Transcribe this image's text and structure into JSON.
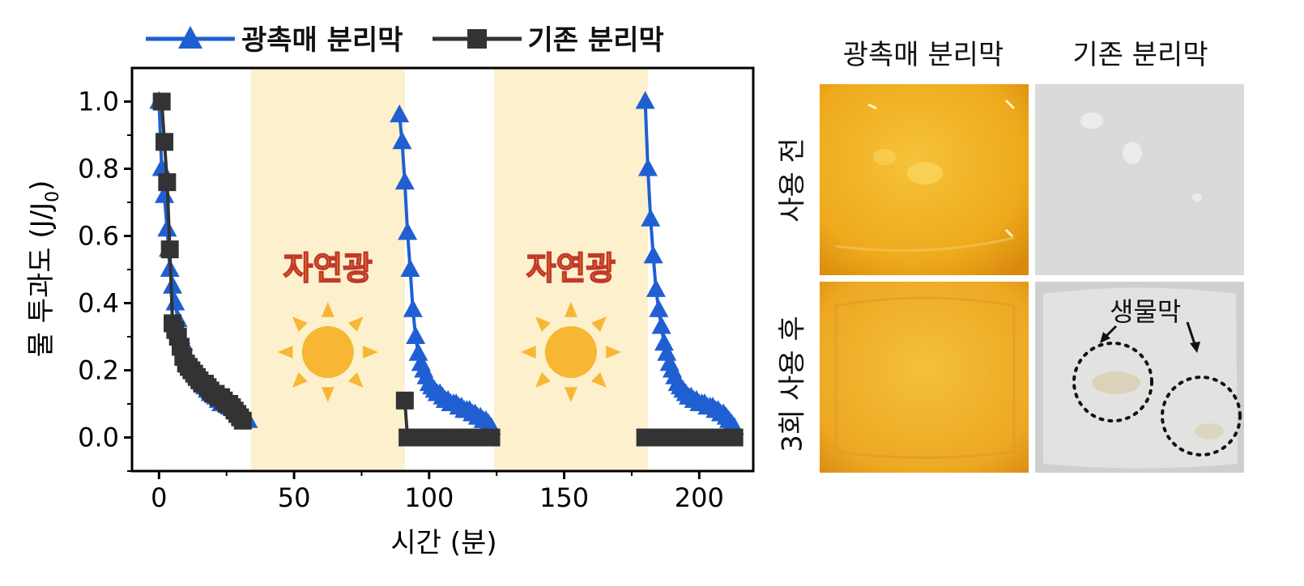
{
  "chart_data": {
    "type": "line",
    "xlabel": "시간 (분)",
    "ylabel_main": "물 투과도 (J/J",
    "ylabel_sub": "0",
    "ylabel_end": ")",
    "xlim": [
      -10,
      220
    ],
    "ylim": [
      -0.1,
      1.1
    ],
    "xticks": [
      0,
      50,
      100,
      150,
      200
    ],
    "yticks": [
      0.0,
      0.2,
      0.4,
      0.6,
      0.8,
      1.0
    ],
    "xtick_labels": [
      "0",
      "50",
      "100",
      "150",
      "200"
    ],
    "ytick_labels": [
      "0.0",
      "0.2",
      "0.4",
      "0.6",
      "0.8",
      "1.0"
    ],
    "light_periods": [
      {
        "start": 34,
        "end": 91,
        "label": "자연광"
      },
      {
        "start": 124,
        "end": 181,
        "label": "자연광"
      }
    ],
    "series": [
      {
        "name": "광촉매 분리막",
        "color": "#1f5fd1",
        "marker": "triangle",
        "x": [
          0,
          1,
          2,
          3,
          3.5,
          4,
          5,
          6,
          7,
          8,
          9,
          10,
          11,
          12,
          13,
          14,
          15,
          16,
          17,
          18,
          19,
          20,
          21,
          22,
          23,
          24,
          25,
          26,
          27,
          28,
          29,
          30,
          31,
          32,
          33
        ],
        "y": [
          1.0,
          0.8,
          0.72,
          0.62,
          0.56,
          0.5,
          0.45,
          0.4,
          0.35,
          0.3,
          0.28,
          0.25,
          0.23,
          0.21,
          0.2,
          0.18,
          0.17,
          0.16,
          0.15,
          0.14,
          0.13,
          0.13,
          0.12,
          0.11,
          0.1,
          0.1,
          0.1,
          0.09,
          0.09,
          0.08,
          0.08,
          0.07,
          0.07,
          0.06,
          0.05
        ],
        "x2": [
          89,
          90,
          91,
          92,
          93,
          94,
          95,
          96,
          97,
          98,
          99,
          100,
          101,
          102,
          103,
          104,
          105,
          106,
          107,
          108,
          109,
          110,
          111,
          112,
          113,
          114,
          115,
          116,
          117,
          118,
          119,
          120,
          121,
          122,
          123
        ],
        "y2": [
          0.96,
          0.88,
          0.76,
          0.61,
          0.5,
          0.38,
          0.3,
          0.25,
          0.22,
          0.2,
          0.18,
          0.16,
          0.15,
          0.14,
          0.13,
          0.13,
          0.12,
          0.11,
          0.11,
          0.1,
          0.1,
          0.1,
          0.09,
          0.09,
          0.08,
          0.08,
          0.08,
          0.07,
          0.07,
          0.06,
          0.06,
          0.05,
          0.05,
          0.04,
          0.03
        ],
        "x3": [
          180,
          181,
          182,
          183,
          184,
          185,
          186,
          187,
          188,
          189,
          190,
          191,
          192,
          193,
          194,
          195,
          196,
          197,
          198,
          199,
          200,
          201,
          202,
          203,
          204,
          205,
          206,
          207,
          208,
          209,
          210,
          211,
          212,
          213
        ],
        "y3": [
          1.0,
          0.8,
          0.65,
          0.54,
          0.44,
          0.38,
          0.33,
          0.28,
          0.25,
          0.22,
          0.2,
          0.18,
          0.16,
          0.15,
          0.14,
          0.13,
          0.12,
          0.12,
          0.11,
          0.11,
          0.1,
          0.1,
          0.1,
          0.09,
          0.09,
          0.09,
          0.08,
          0.08,
          0.07,
          0.07,
          0.06,
          0.05,
          0.04,
          0.03
        ]
      },
      {
        "name": "기존 분리막",
        "color": "#333333",
        "marker": "square",
        "x": [
          1,
          2,
          3,
          4,
          5,
          6,
          7,
          8,
          9,
          10,
          11,
          12,
          13,
          14,
          15,
          16,
          17,
          18,
          19,
          20,
          21,
          22,
          23,
          24,
          25,
          26,
          27,
          28,
          29,
          30,
          31
        ],
        "y": [
          1.0,
          0.88,
          0.76,
          0.56,
          0.34,
          0.32,
          0.3,
          0.27,
          0.24,
          0.22,
          0.21,
          0.2,
          0.19,
          0.18,
          0.17,
          0.16,
          0.16,
          0.15,
          0.14,
          0.13,
          0.13,
          0.12,
          0.12,
          0.11,
          0.1,
          0.1,
          0.09,
          0.08,
          0.07,
          0.06,
          0.05
        ],
        "x2": [
          91,
          92,
          95,
          98,
          101,
          104,
          107,
          110,
          113,
          116,
          119,
          122,
          123
        ],
        "y2": [
          0.11,
          0.0,
          0.0,
          0.0,
          0.0,
          0.0,
          0.0,
          0.0,
          0.0,
          0.0,
          0.0,
          0.0,
          0.0
        ],
        "x3": [
          180,
          183,
          186,
          189,
          192,
          195,
          198,
          201,
          204,
          207,
          210,
          213
        ],
        "y3": [
          0.0,
          0.0,
          0.0,
          0.0,
          0.0,
          0.0,
          0.0,
          0.0,
          0.0,
          0.0,
          0.0,
          0.0
        ]
      }
    ]
  },
  "photos": {
    "col_titles": [
      "광촉매 분리막",
      "기존 분리막"
    ],
    "row_titles": [
      "사용 전",
      "3회 사용 후"
    ],
    "annotation": "생물막"
  },
  "colors": {
    "light_band": "#fdf0cc",
    "light_label_fill": "#f7a81a",
    "light_label_stroke": "#c0392b",
    "sun": "#f7b733"
  }
}
